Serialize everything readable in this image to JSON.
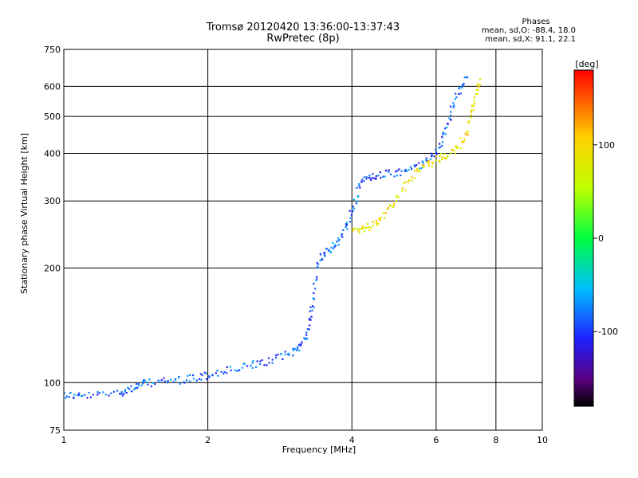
{
  "header": {
    "title_line1": "Tromsø 20120420 13:36:00-13:37:43",
    "title_line2": "RwPretec (8p)"
  },
  "phases": {
    "label": "Phases",
    "line_o": "mean, sd,O: -88.4, 18.0",
    "line_x": "mean, sd,X:  91.1, 22.1"
  },
  "colorbar": {
    "unit": "[deg]",
    "ticks": [
      "100",
      "0",
      "-100"
    ],
    "tick_values": [
      100,
      0,
      -100
    ],
    "range": [
      -180,
      180
    ]
  },
  "chart_data": {
    "type": "scatter",
    "xlabel": "Frequency [MHz]",
    "ylabel": "Stationary phase Virtual Height [km]",
    "xscale": "log",
    "yscale": "log",
    "xlim": [
      1,
      10
    ],
    "ylim": [
      75,
      750
    ],
    "grid": true,
    "x_ticks": [
      1,
      2,
      4,
      6,
      8,
      10
    ],
    "x_tick_labels": [
      "1",
      "2",
      "4",
      "6",
      "8",
      "10"
    ],
    "y_ticks": [
      75,
      100,
      200,
      300,
      400,
      500,
      600,
      750
    ],
    "y_tick_labels": [
      "75",
      "100",
      "200",
      "300",
      "400",
      "500",
      "600",
      "750"
    ],
    "series": [
      {
        "trace": "o-mode",
        "mean_phase": -88.4,
        "points": [
          [
            1.0,
            93
          ],
          [
            1.1,
            92
          ],
          [
            1.3,
            94
          ],
          [
            1.4,
            97
          ],
          [
            1.5,
            100
          ],
          [
            1.7,
            101
          ],
          [
            1.9,
            103
          ],
          [
            2.1,
            106
          ],
          [
            2.4,
            110
          ],
          [
            2.7,
            114
          ],
          [
            3.0,
            120
          ],
          [
            3.2,
            130
          ],
          [
            3.3,
            155
          ],
          [
            3.4,
            210
          ],
          [
            3.6,
            225
          ],
          [
            3.8,
            240
          ],
          [
            4.0,
            280
          ],
          [
            4.2,
            340
          ],
          [
            4.5,
            350
          ],
          [
            5.0,
            355
          ],
          [
            5.5,
            370
          ],
          [
            6.0,
            400
          ],
          [
            6.3,
            470
          ],
          [
            6.6,
            560
          ],
          [
            7.0,
            650
          ]
        ]
      },
      {
        "trace": "x-mode",
        "mean_phase": 91.1,
        "points": [
          [
            4.0,
            250
          ],
          [
            4.3,
            255
          ],
          [
            4.6,
            270
          ],
          [
            5.0,
            310
          ],
          [
            5.5,
            360
          ],
          [
            6.0,
            385
          ],
          [
            6.5,
            400
          ],
          [
            6.9,
            440
          ],
          [
            7.2,
            540
          ],
          [
            7.4,
            630
          ]
        ]
      }
    ]
  }
}
